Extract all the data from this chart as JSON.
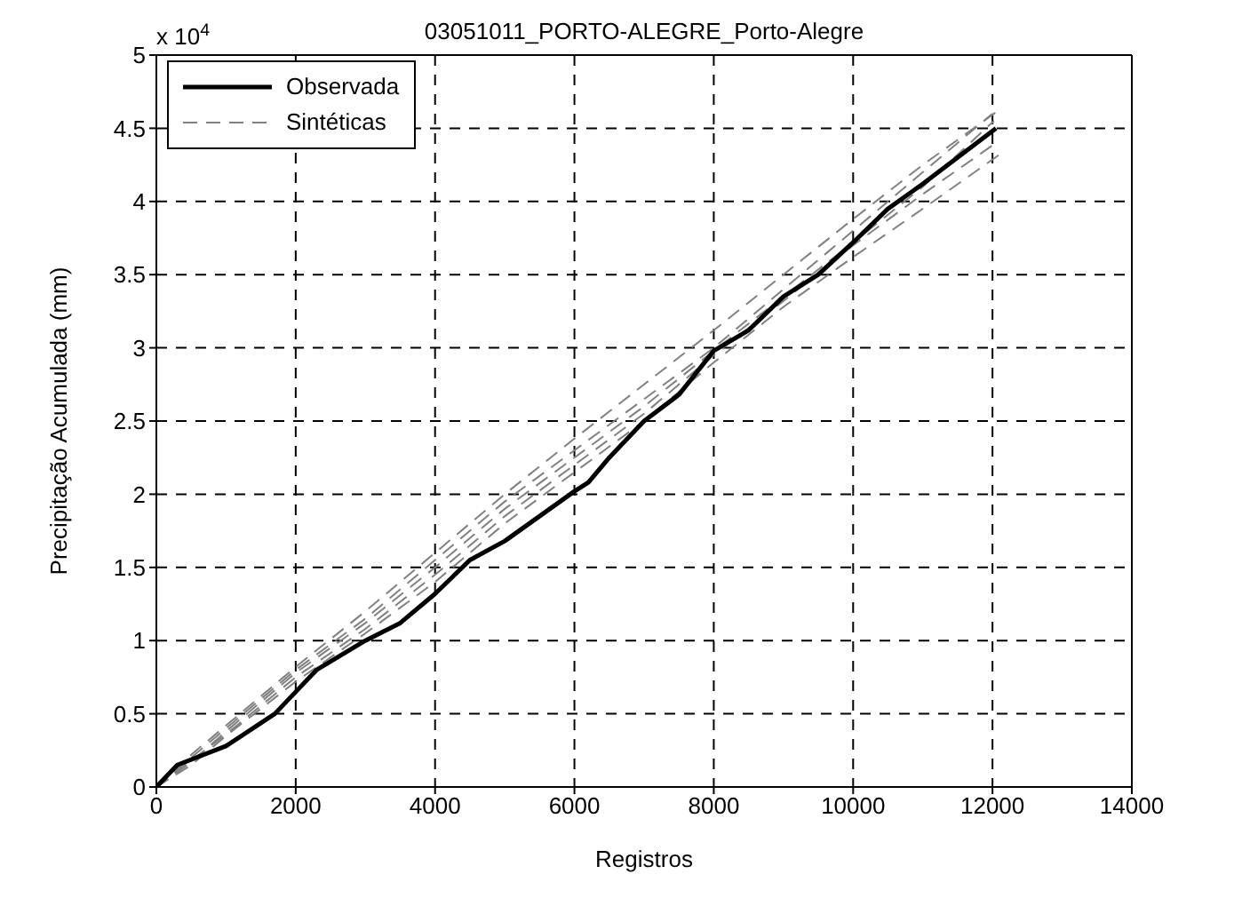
{
  "chart_data": {
    "type": "line",
    "title": "03051011_PORTO-ALEGRE_Porto-Alegre",
    "xlabel": "Registros",
    "ylabel": "Precipitação Acumulada (mm)",
    "annotations": [
      "x 10$^{4}$"
    ],
    "xlim": [
      0,
      14000
    ],
    "xticks": [
      0,
      2000,
      4000,
      6000,
      8000,
      10000,
      12000,
      14000
    ],
    "ylim": [
      0,
      5
    ],
    "yticks": [
      0,
      0.5,
      1,
      1.5,
      2,
      2.5,
      3,
      3.5,
      4,
      4.5,
      5
    ],
    "grid": true,
    "legend": "top left",
    "marker": "none",
    "series": [
      {
        "name": "Sintéticas",
        "color": "#808080",
        "line_style": "dashed",
        "x": [
          0,
          500,
          1000,
          2000,
          3000,
          4000,
          5000,
          6000,
          7000,
          8000,
          9000,
          10000,
          11000,
          12000
        ],
        "values": [
          0,
          0.2,
          0.4,
          0.8,
          1.15,
          1.55,
          1.95,
          2.3,
          2.65,
          3.0,
          3.4,
          3.8,
          4.2,
          4.6
        ]
      },
      {
        "color": "#808080",
        "line_style": "dashed",
        "x": [
          0,
          500,
          1000,
          2000,
          3000,
          4000,
          5000,
          6000,
          7000,
          8000,
          9000,
          10000,
          11000,
          12050
        ],
        "values": [
          0,
          0.18,
          0.36,
          0.75,
          1.08,
          1.45,
          1.85,
          2.2,
          2.55,
          2.95,
          3.32,
          3.7,
          4.05,
          4.4
        ]
      },
      {
        "color": "#808080",
        "line_style": "dashed",
        "x": [
          0,
          500,
          1000,
          2000,
          3000,
          4000,
          5000,
          6000,
          7000,
          8000,
          9000,
          10000,
          11000,
          12100
        ],
        "values": [
          0,
          0.15,
          0.35,
          0.72,
          1.05,
          1.4,
          1.8,
          2.15,
          2.5,
          2.9,
          3.28,
          3.62,
          3.95,
          4.32
        ]
      },
      {
        "color": "#808080",
        "line_style": "dashed",
        "x": [
          0,
          500,
          1000,
          2000,
          3000,
          4000,
          5000,
          6000,
          7000,
          8000,
          9000,
          10000,
          11000,
          12080
        ],
        "values": [
          0,
          0.22,
          0.42,
          0.82,
          1.2,
          1.6,
          2.0,
          2.38,
          2.75,
          3.12,
          3.5,
          3.88,
          4.25,
          4.62
        ]
      },
      {
        "color": "#808080",
        "line_style": "dashed",
        "x": [
          0,
          500,
          1000,
          2000,
          3000,
          4000,
          5000,
          6000,
          7000,
          8000,
          9000,
          10000,
          11000,
          12020
        ],
        "values": [
          0,
          0.17,
          0.38,
          0.78,
          1.12,
          1.5,
          1.9,
          2.25,
          2.6,
          2.98,
          3.35,
          3.72,
          4.1,
          4.55
        ]
      },
      {
        "name": "Observada",
        "color": "#000000",
        "line_style": "solid",
        "x": [
          0,
          300,
          1000,
          1700,
          2000,
          2300,
          3000,
          3500,
          4000,
          4500,
          5000,
          5500,
          6000,
          6200,
          6500,
          7000,
          7500,
          8000,
          8500,
          9000,
          9500,
          10000,
          10500,
          11000,
          11500,
          12050
        ],
        "values": [
          0,
          0.15,
          0.28,
          0.5,
          0.65,
          0.8,
          1.0,
          1.12,
          1.32,
          1.55,
          1.68,
          1.85,
          2.02,
          2.08,
          2.25,
          2.5,
          2.68,
          2.98,
          3.12,
          3.35,
          3.5,
          3.72,
          3.95,
          4.12,
          4.3,
          4.5
        ]
      }
    ]
  }
}
